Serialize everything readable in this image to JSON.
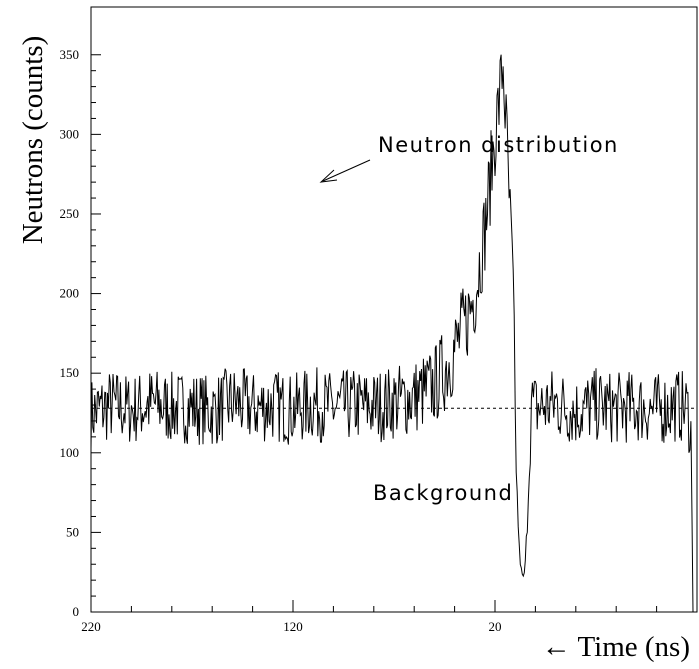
{
  "chart_data": {
    "type": "line",
    "title": "",
    "xlabel": "← Time (ns)",
    "ylabel": "Neutrons (counts)",
    "xlim": [
      220,
      -80
    ],
    "ylim": [
      0,
      380
    ],
    "x_tick_labels": [
      "220",
      "120",
      "20"
    ],
    "y_tick_labels": [
      "0",
      "50",
      "100",
      "150",
      "200",
      "250",
      "300",
      "350"
    ],
    "background_level": 128,
    "annotations": [
      "Neutron distribution",
      "Background"
    ],
    "series": [
      {
        "x": [
          220,
          210,
          200,
          190,
          180,
          170,
          160,
          150,
          140,
          130,
          120,
          110,
          100,
          90,
          80,
          70,
          60,
          50,
          45,
          40,
          35,
          30,
          25,
          22,
          20,
          18,
          16,
          14,
          13,
          11,
          10,
          9,
          8,
          7,
          6,
          5,
          4,
          2,
          0,
          -10,
          -20,
          -30,
          -40,
          -50,
          -60,
          -70,
          -75,
          -77,
          -78
        ],
        "y": [
          125,
          130,
          127,
          131,
          128,
          129,
          126,
          132,
          128,
          130,
          127,
          131,
          128,
          130,
          129,
          132,
          135,
          142,
          152,
          165,
          180,
          200,
          240,
          275,
          300,
          320,
          345,
          290,
          260,
          200,
          120,
          70,
          40,
          25,
          20,
          30,
          60,
          130,
          128,
          131,
          126,
          130,
          128,
          129,
          127,
          130,
          128,
          115,
          0
        ]
      }
    ]
  }
}
